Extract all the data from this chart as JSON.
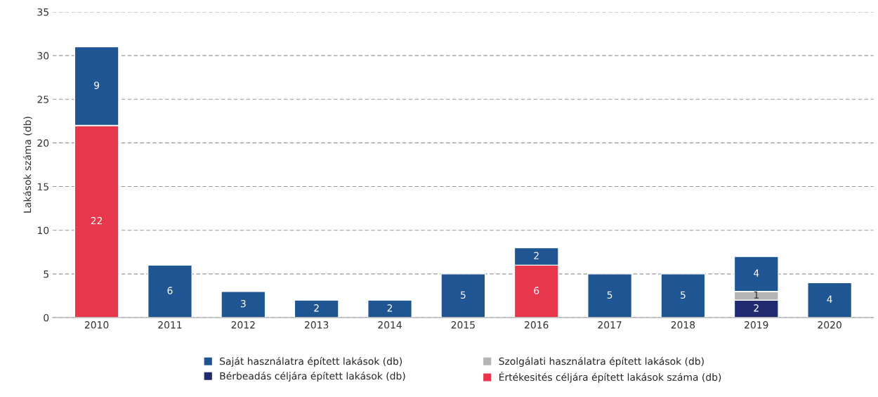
{
  "chart_data": {
    "type": "bar",
    "stacked": true,
    "ylabel": "Lakások száma (db)",
    "categories": [
      "2010",
      "2011",
      "2012",
      "2013",
      "2014",
      "2015",
      "2016",
      "2017",
      "2018",
      "2019",
      "2020"
    ],
    "series": [
      {
        "name": "Értékesités céljára épített lakások száma (db)",
        "color": "#e8374c",
        "values": [
          22,
          null,
          null,
          null,
          null,
          null,
          6,
          null,
          null,
          null,
          null
        ]
      },
      {
        "name": "Bérbeadás céljára épített lakások (db)",
        "color": "#1f2b6e",
        "values": [
          null,
          null,
          null,
          null,
          null,
          null,
          null,
          null,
          null,
          2,
          null
        ]
      },
      {
        "name": "Szolgálati használatra épített lakások (db)",
        "color": "#b4b4b4",
        "values": [
          null,
          null,
          null,
          null,
          null,
          null,
          null,
          null,
          null,
          1,
          null
        ]
      },
      {
        "name": "Saját használatra épített lakások (db)",
        "color": "#1f5592",
        "values": [
          9,
          6,
          3,
          2,
          2,
          5,
          2,
          5,
          5,
          4,
          4
        ]
      }
    ],
    "ylim": [
      0,
      35
    ],
    "yticks": [
      0,
      5,
      10,
      15,
      20,
      25,
      30,
      35
    ],
    "grid": "y",
    "legend": "bottom",
    "data_labels": true
  }
}
